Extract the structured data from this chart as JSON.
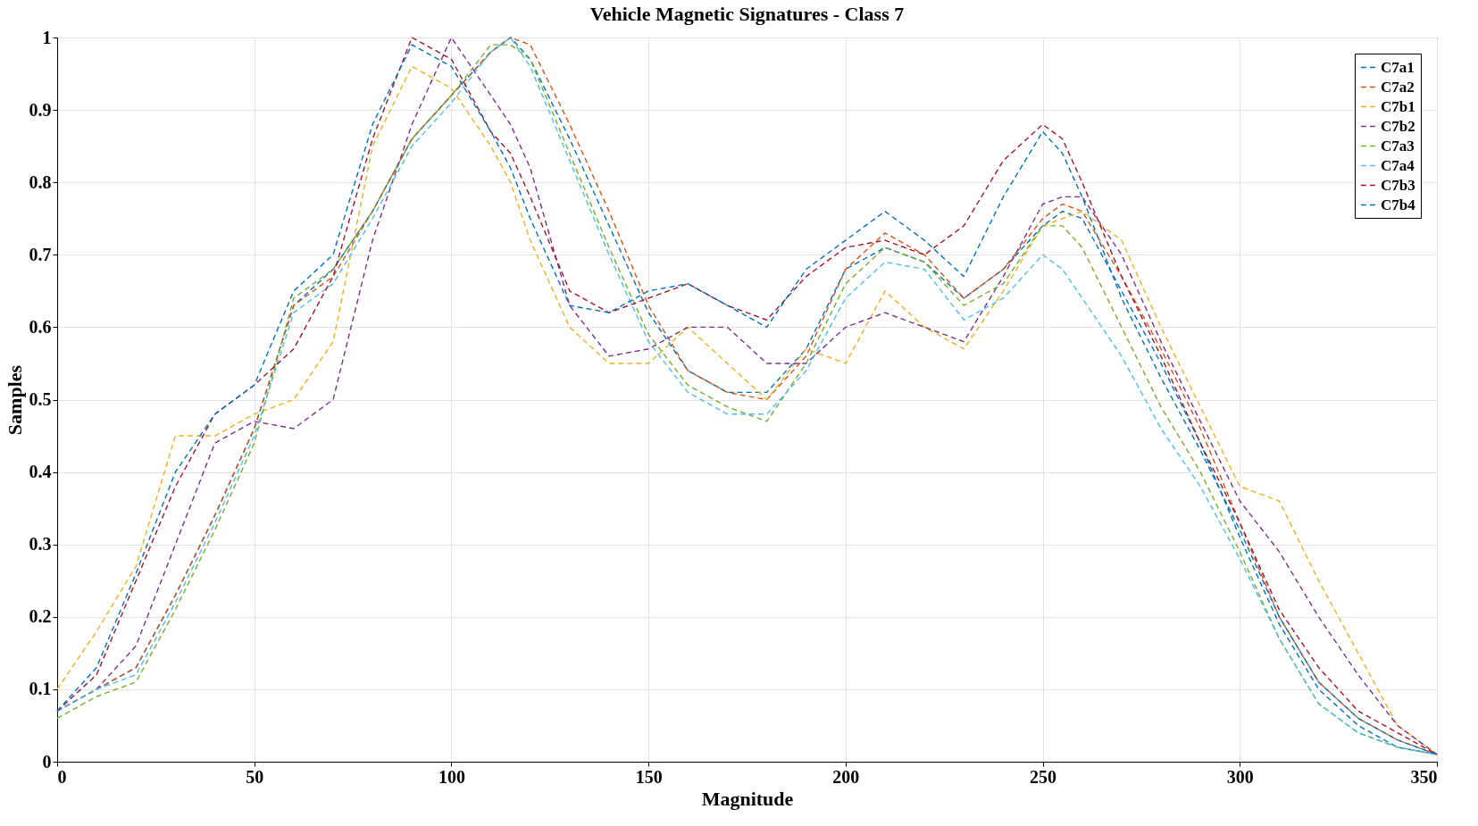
{
  "chart_data": {
    "type": "line",
    "title": "Vehicle Magnetic Signatures - Class 7",
    "xlabel": "Magnitude",
    "ylabel": "Samples",
    "x": [
      0,
      10,
      20,
      30,
      40,
      50,
      60,
      70,
      80,
      90,
      100,
      110,
      115,
      120,
      130,
      140,
      150,
      160,
      170,
      180,
      190,
      200,
      210,
      220,
      230,
      240,
      250,
      255,
      260,
      270,
      280,
      290,
      300,
      310,
      320,
      330,
      340,
      350
    ],
    "xlim": [
      0,
      350
    ],
    "xticks": [
      0,
      50,
      100,
      150,
      200,
      250,
      300,
      350
    ],
    "ylim": [
      0,
      1
    ],
    "yticks": [
      0,
      0.1,
      0.2,
      0.3,
      0.4,
      0.5,
      0.6,
      0.7,
      0.8,
      0.9,
      1
    ],
    "grid": true,
    "legend": "top right",
    "line_style": "dashed",
    "marker": "none",
    "series": [
      {
        "name": "C7a1",
        "color": "#0072bd",
        "values": [
          0.07,
          0.1,
          0.13,
          0.23,
          0.34,
          0.46,
          0.63,
          0.68,
          0.76,
          0.86,
          0.92,
          0.98,
          1.0,
          0.97,
          0.86,
          0.74,
          0.62,
          0.54,
          0.51,
          0.51,
          0.57,
          0.68,
          0.71,
          0.69,
          0.64,
          0.68,
          0.74,
          0.76,
          0.75,
          0.65,
          0.55,
          0.44,
          0.31,
          0.19,
          0.1,
          0.05,
          0.02,
          0.01
        ]
      },
      {
        "name": "C7a2",
        "color": "#d95319",
        "values": [
          0.07,
          0.1,
          0.13,
          0.23,
          0.34,
          0.46,
          0.63,
          0.67,
          0.76,
          0.86,
          0.92,
          0.98,
          1.0,
          0.99,
          0.88,
          0.76,
          0.63,
          0.54,
          0.51,
          0.5,
          0.56,
          0.68,
          0.73,
          0.7,
          0.64,
          0.68,
          0.75,
          0.77,
          0.76,
          0.67,
          0.57,
          0.46,
          0.33,
          0.2,
          0.11,
          0.06,
          0.03,
          0.01
        ]
      },
      {
        "name": "C7b1",
        "color": "#edb120",
        "values": [
          0.1,
          0.18,
          0.27,
          0.45,
          0.45,
          0.48,
          0.5,
          0.58,
          0.85,
          0.96,
          0.93,
          0.85,
          0.8,
          0.72,
          0.6,
          0.55,
          0.55,
          0.6,
          0.55,
          0.5,
          0.57,
          0.55,
          0.65,
          0.6,
          0.57,
          0.65,
          0.74,
          0.75,
          0.76,
          0.72,
          0.6,
          0.49,
          0.38,
          0.36,
          0.25,
          0.15,
          0.05,
          0.01
        ]
      },
      {
        "name": "C7b2",
        "color": "#7e2f8e",
        "values": [
          0.07,
          0.1,
          0.16,
          0.3,
          0.44,
          0.47,
          0.46,
          0.5,
          0.72,
          0.88,
          1.0,
          0.92,
          0.88,
          0.82,
          0.63,
          0.56,
          0.57,
          0.6,
          0.6,
          0.55,
          0.55,
          0.6,
          0.62,
          0.6,
          0.58,
          0.67,
          0.77,
          0.78,
          0.78,
          0.7,
          0.58,
          0.47,
          0.36,
          0.29,
          0.2,
          0.12,
          0.05,
          0.01
        ]
      },
      {
        "name": "C7a3",
        "color": "#77ac30",
        "values": [
          0.06,
          0.09,
          0.11,
          0.21,
          0.32,
          0.44,
          0.64,
          0.68,
          0.76,
          0.86,
          0.92,
          0.99,
          0.99,
          0.97,
          0.84,
          0.71,
          0.59,
          0.52,
          0.49,
          0.47,
          0.55,
          0.66,
          0.71,
          0.69,
          0.63,
          0.66,
          0.74,
          0.74,
          0.71,
          0.6,
          0.49,
          0.4,
          0.29,
          0.17,
          0.08,
          0.04,
          0.02,
          0.01
        ]
      },
      {
        "name": "C7a4",
        "color": "#4dbeee",
        "values": [
          0.07,
          0.1,
          0.12,
          0.22,
          0.33,
          0.45,
          0.62,
          0.66,
          0.75,
          0.85,
          0.91,
          0.98,
          1.0,
          0.96,
          0.83,
          0.7,
          0.58,
          0.51,
          0.48,
          0.48,
          0.54,
          0.64,
          0.69,
          0.68,
          0.61,
          0.64,
          0.7,
          0.68,
          0.64,
          0.56,
          0.46,
          0.38,
          0.28,
          0.17,
          0.08,
          0.04,
          0.02,
          0.01
        ]
      },
      {
        "name": "C7b3",
        "color": "#a2142f",
        "values": [
          0.07,
          0.12,
          0.25,
          0.38,
          0.48,
          0.52,
          0.57,
          0.67,
          0.86,
          1.0,
          0.97,
          0.87,
          0.84,
          0.78,
          0.65,
          0.62,
          0.64,
          0.66,
          0.63,
          0.61,
          0.67,
          0.71,
          0.72,
          0.7,
          0.74,
          0.83,
          0.88,
          0.86,
          0.8,
          0.67,
          0.56,
          0.44,
          0.33,
          0.21,
          0.13,
          0.07,
          0.04,
          0.01
        ]
      },
      {
        "name": "C7b4",
        "color": "#0072bd",
        "values": [
          0.07,
          0.13,
          0.26,
          0.4,
          0.48,
          0.52,
          0.65,
          0.7,
          0.88,
          0.99,
          0.96,
          0.87,
          0.82,
          0.75,
          0.63,
          0.62,
          0.65,
          0.66,
          0.63,
          0.6,
          0.68,
          0.72,
          0.76,
          0.72,
          0.67,
          0.78,
          0.87,
          0.84,
          0.78,
          0.64,
          0.53,
          0.43,
          0.32,
          0.2,
          0.11,
          0.06,
          0.03,
          0.01
        ]
      }
    ]
  }
}
